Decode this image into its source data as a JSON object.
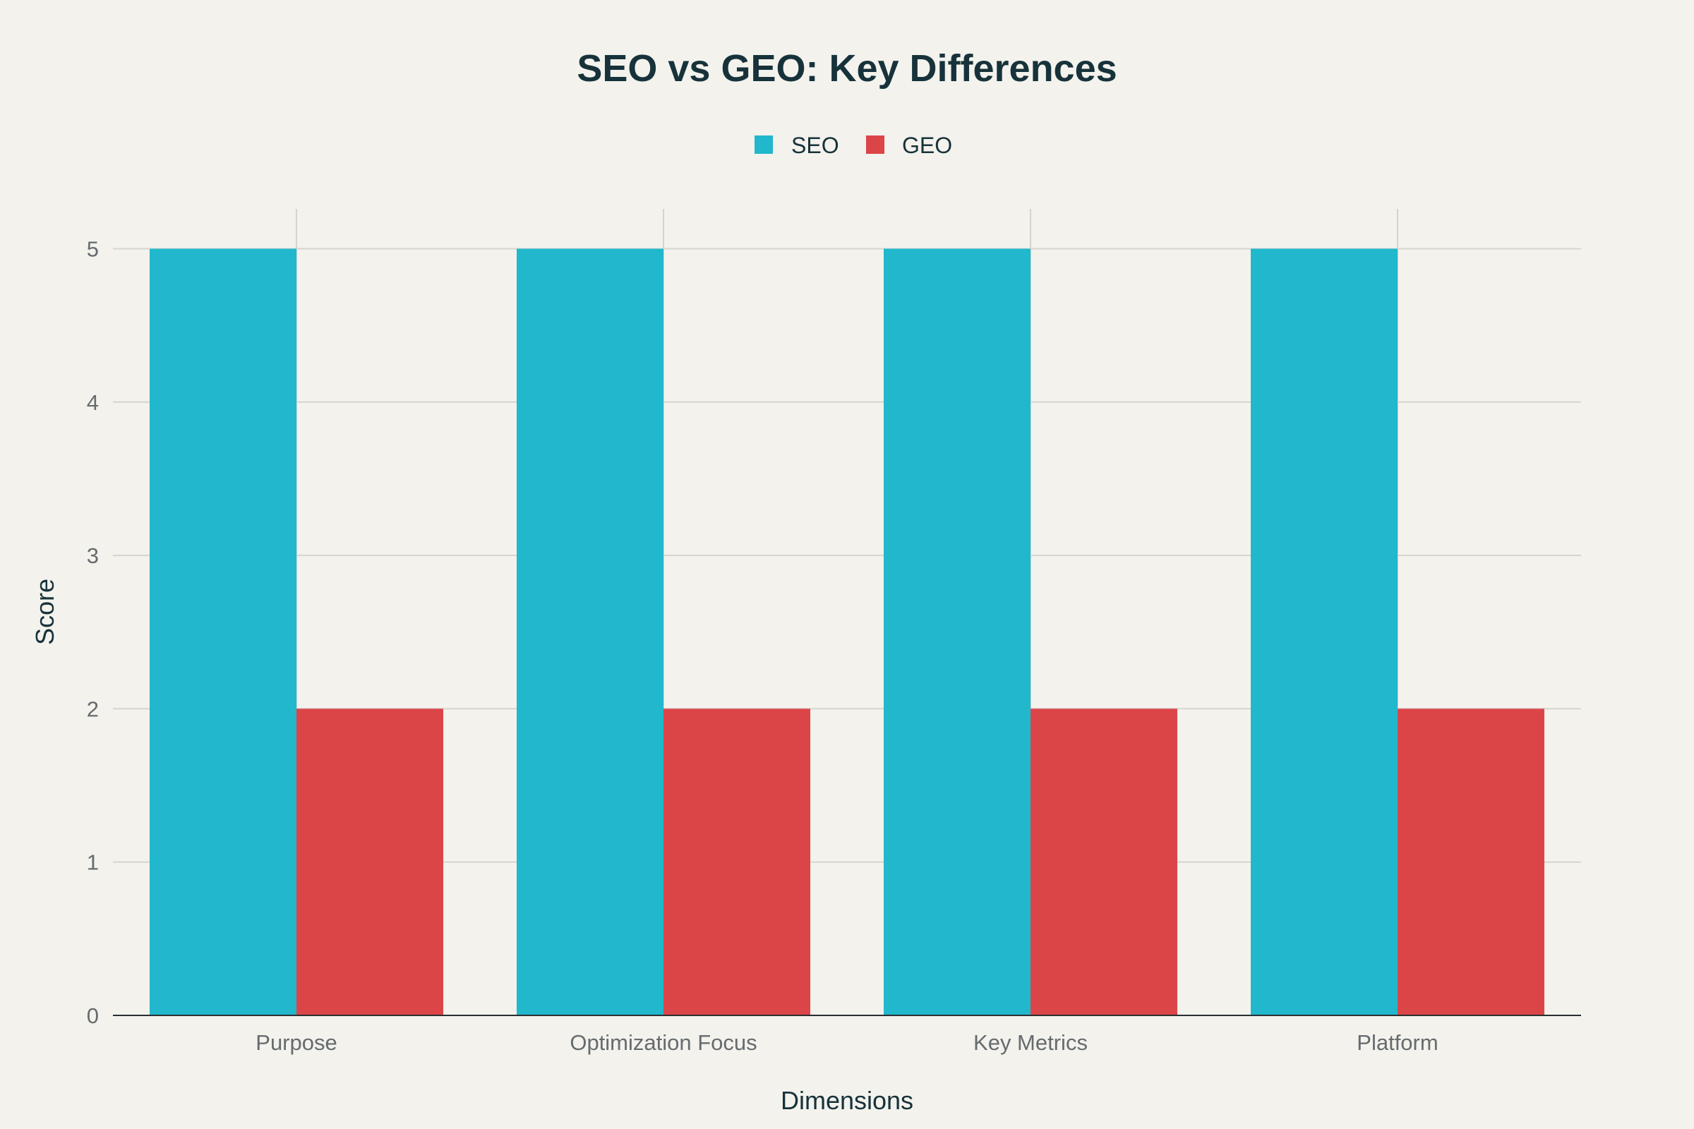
{
  "chart_data": {
    "type": "bar",
    "title": "SEO vs GEO: Key Differences",
    "xlabel": "Dimensions",
    "ylabel": "Score",
    "categories": [
      "Purpose",
      "Optimization Focus",
      "Key Metrics",
      "Platform"
    ],
    "series": [
      {
        "name": "SEO",
        "values": [
          5,
          5,
          5,
          5
        ],
        "color": "#21b7cc"
      },
      {
        "name": "GEO",
        "values": [
          2,
          2,
          2,
          2
        ],
        "color": "#dc4548"
      }
    ],
    "ylim": [
      0,
      5.26
    ],
    "yticks": [
      0,
      1,
      2,
      3,
      4,
      5
    ],
    "grid": true,
    "legend_position": "top-center"
  }
}
